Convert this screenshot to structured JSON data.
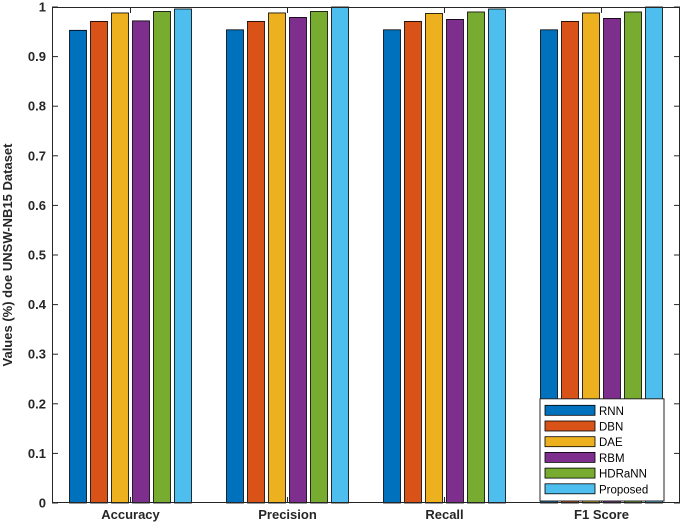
{
  "chart_data": {
    "type": "bar",
    "title": "",
    "xlabel": "",
    "ylabel": "Values (%) doe UNSW-NB15 Dataset",
    "ylim": [
      0,
      1
    ],
    "yticks": [
      "0",
      "0.1",
      "0.2",
      "0.3",
      "0.4",
      "0.5",
      "0.6",
      "0.7",
      "0.8",
      "0.9",
      "1"
    ],
    "grid": false,
    "legend_position": "bottom-right",
    "categories": [
      "Accuracy",
      "Precision",
      "Recall",
      "F1 Score"
    ],
    "series": [
      {
        "name": "RNN",
        "color": "#0072BD",
        "values": [
          0.953,
          0.954,
          0.954,
          0.954
        ]
      },
      {
        "name": "DBN",
        "color": "#D95319",
        "values": [
          0.971,
          0.971,
          0.971,
          0.971
        ]
      },
      {
        "name": "DAE",
        "color": "#EDB120",
        "values": [
          0.988,
          0.988,
          0.987,
          0.988
        ]
      },
      {
        "name": "RBM",
        "color": "#7E2F8E",
        "values": [
          0.972,
          0.979,
          0.975,
          0.977
        ]
      },
      {
        "name": "HDRaNN",
        "color": "#77AC30",
        "values": [
          0.991,
          0.991,
          0.99,
          0.99
        ]
      },
      {
        "name": "Proposed",
        "color": "#4DBEEE",
        "values": [
          0.996,
          1.0,
          0.996,
          1.0
        ]
      }
    ]
  }
}
